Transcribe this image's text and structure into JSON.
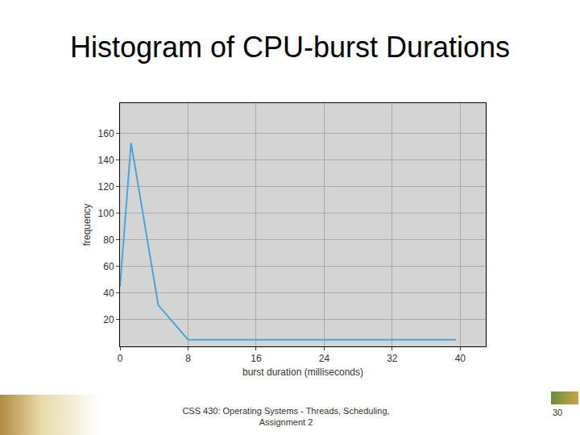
{
  "chart_data": {
    "type": "line",
    "title": "Histogram of CPU-burst Durations",
    "x_label": "burst duration (milliseconds)",
    "y_label": "frequency",
    "x": [
      0,
      1.3,
      4.5,
      8,
      39.5
    ],
    "values": [
      45,
      153,
      31,
      5,
      5
    ],
    "color": "#4aa3df",
    "xlim": [
      0,
      43
    ],
    "xticks": [
      0,
      8,
      16,
      24,
      32,
      40
    ],
    "ylim": [
      0,
      183
    ],
    "yticks": [
      20,
      40,
      60,
      80,
      100,
      120,
      140,
      160
    ],
    "grid": true
  },
  "footer": {
    "lines": [
      "CSS 430: Operating Systems - Threads, Scheduling,",
      "Assignment 2"
    ],
    "page": 30
  }
}
